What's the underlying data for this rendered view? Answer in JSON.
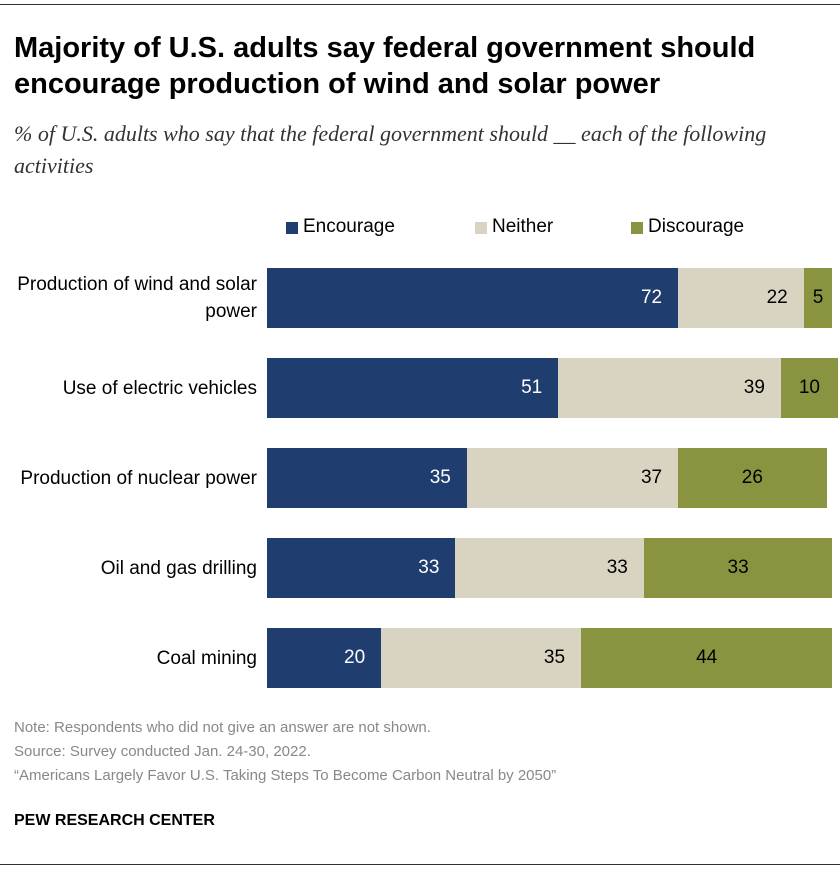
{
  "chart_data": {
    "type": "stacked-bar-horizontal",
    "title": "Majority of U.S. adults say federal government should encourage production of wind and solar power",
    "subtitle": "% of U.S. adults who say that the federal government should __ each of the following activities",
    "categories": [
      "Production of wind and solar power",
      "Use of electric vehicles",
      "Production of nuclear power",
      "Oil and gas drilling",
      "Coal mining"
    ],
    "series": [
      {
        "name": "Encourage",
        "color": "#1f3d6e",
        "values": [
          72,
          51,
          35,
          33,
          20
        ]
      },
      {
        "name": "Neither",
        "color": "#d9d3c2",
        "values": [
          22,
          39,
          37,
          33,
          35
        ]
      },
      {
        "name": "Discourage",
        "color": "#8a9440",
        "values": [
          5,
          10,
          26,
          33,
          44
        ]
      }
    ],
    "notes": [
      "Note: Respondents who did not give an answer are not shown.",
      "Source: Survey conducted Jan. 24-30, 2022.",
      "“Americans Largely Favor U.S. Taking Steps To Become Carbon Neutral by 2050”"
    ],
    "source": "PEW RESEARCH CENTER"
  }
}
